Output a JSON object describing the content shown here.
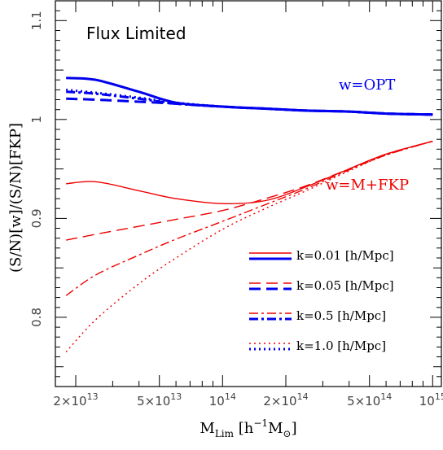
{
  "chart_data": {
    "type": "line",
    "annotation": "Flux Limited",
    "xlabel_main": "M",
    "xlabel_sub": "Lim",
    "xlabel_open": " [h",
    "xlabel_exp": "−1",
    "xlabel_mid": "M",
    "xlabel_sun": "⊙",
    "xlabel_close": "]",
    "ylabel": "(S/N)[w]/(S/N)[FKP]",
    "xscale": "log",
    "xlim": [
      16000000000000.0,
      1100000000000000.0
    ],
    "ylim": [
      0.73,
      1.12
    ],
    "x_ticks": [
      {
        "x": 20000000000000.0,
        "mant": "2×10",
        "exp": "13"
      },
      {
        "x": 50000000000000.0,
        "mant": "5×10",
        "exp": "13"
      },
      {
        "x": 100000000000000.0,
        "mant": "10",
        "exp": "14"
      },
      {
        "x": 200000000000000.0,
        "mant": "2×10",
        "exp": "14"
      },
      {
        "x": 500000000000000.0,
        "mant": "5×10",
        "exp": "14"
      },
      {
        "x": 1000000000000000.0,
        "mant": "10",
        "exp": "15"
      }
    ],
    "y_ticks": [
      {
        "y": 0.8,
        "label": "0.8"
      },
      {
        "y": 0.9,
        "label": "0.9"
      },
      {
        "y": 1.0,
        "label": "1"
      },
      {
        "y": 1.1,
        "label": "1.1"
      }
    ],
    "group_labels": [
      {
        "text": "w=OPT",
        "color": "#0000ee"
      },
      {
        "text": "w=M+FKP",
        "color": "#ee0000"
      }
    ],
    "legend": [
      {
        "label": "k=0.01 [h/Mpc]",
        "dash": "solid"
      },
      {
        "label": "k=0.05 [h/Mpc]",
        "dash": "dashed"
      },
      {
        "label": "k=0.5 [h/Mpc]",
        "dash": "dashdot"
      },
      {
        "label": "k=1.0 [h/Mpc]",
        "dash": "dotted"
      }
    ],
    "x": [
      18000000000000.0,
      25000000000000.0,
      40000000000000.0,
      60000000000000.0,
      100000000000000.0,
      160000000000000.0,
      250000000000000.0,
      400000000000000.0,
      600000000000000.0,
      1000000000000000.0
    ],
    "series": [
      {
        "group": "w=OPT",
        "k": "0.01",
        "color": "#0000ee",
        "dash": "solid",
        "width": 3,
        "values": [
          1.042,
          1.04,
          1.028,
          1.017,
          1.013,
          1.011,
          1.009,
          1.008,
          1.006,
          1.005
        ]
      },
      {
        "group": "w=OPT",
        "k": "0.05",
        "color": "#0000ee",
        "dash": "dashed",
        "width": 3,
        "values": [
          1.021,
          1.02,
          1.018,
          1.016,
          1.013,
          1.011,
          1.009,
          1.008,
          1.006,
          1.005
        ]
      },
      {
        "group": "w=OPT",
        "k": "0.5",
        "color": "#0000ee",
        "dash": "dashdot",
        "width": 3,
        "values": [
          1.028,
          1.026,
          1.021,
          1.016,
          1.013,
          1.011,
          1.009,
          1.008,
          1.006,
          1.005
        ]
      },
      {
        "group": "w=OPT",
        "k": "1.0",
        "color": "#0000ee",
        "dash": "dotted",
        "width": 3,
        "values": [
          1.03,
          1.027,
          1.022,
          1.017,
          1.013,
          1.011,
          1.009,
          1.008,
          1.006,
          1.005
        ]
      },
      {
        "group": "w=M+FKP",
        "k": "0.01",
        "color": "#ee0000",
        "dash": "solid",
        "width": 1.4,
        "values": [
          0.935,
          0.937,
          0.928,
          0.92,
          0.915,
          0.918,
          0.932,
          0.95,
          0.965,
          0.978
        ]
      },
      {
        "group": "w=M+FKP",
        "k": "0.05",
        "color": "#ee0000",
        "dash": "dashed",
        "width": 1.4,
        "values": [
          0.878,
          0.884,
          0.892,
          0.899,
          0.908,
          0.92,
          0.933,
          0.95,
          0.965,
          0.978
        ]
      },
      {
        "group": "w=M+FKP",
        "k": "0.5",
        "color": "#ee0000",
        "dash": "dashdot",
        "width": 1.4,
        "values": [
          0.822,
          0.843,
          0.863,
          0.879,
          0.897,
          0.914,
          0.93,
          0.949,
          0.964,
          0.978
        ]
      },
      {
        "group": "w=M+FKP",
        "k": "1.0",
        "color": "#ee0000",
        "dash": "dotted",
        "width": 1.4,
        "values": [
          0.765,
          0.798,
          0.834,
          0.86,
          0.889,
          0.91,
          0.928,
          0.948,
          0.964,
          0.978
        ]
      }
    ]
  }
}
